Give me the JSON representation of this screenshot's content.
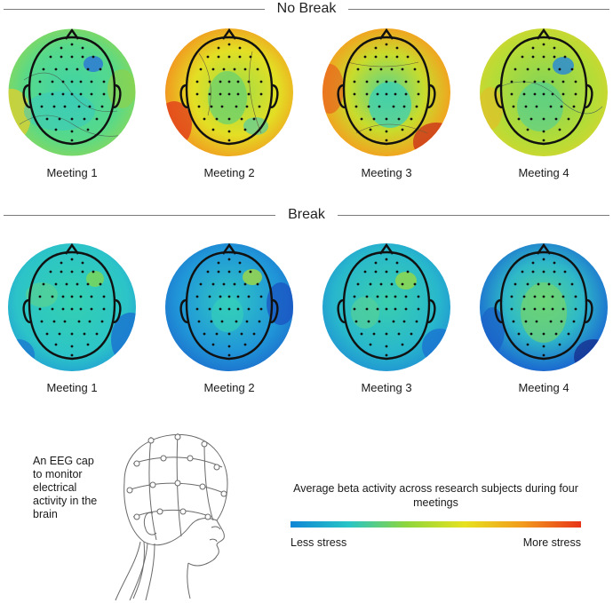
{
  "sections": {
    "no_break": {
      "title": "No Break",
      "meetings": [
        "Meeting 1",
        "Meeting 2",
        "Meeting 3",
        "Meeting 4"
      ]
    },
    "break": {
      "title": "Break",
      "meetings": [
        "Meeting 1",
        "Meeting 2",
        "Meeting 3",
        "Meeting 4"
      ]
    }
  },
  "cap": {
    "caption": "An EEG cap to monitor electrical activity in the brain"
  },
  "legend": {
    "title": "Average beta activity across research subjects during four meetings",
    "low": "Less stress",
    "high": "More stress",
    "colors": [
      "#0f86d6",
      "#28c5c6",
      "#8ed63c",
      "#e7e21f",
      "#f29a1c",
      "#e8341a"
    ]
  }
}
